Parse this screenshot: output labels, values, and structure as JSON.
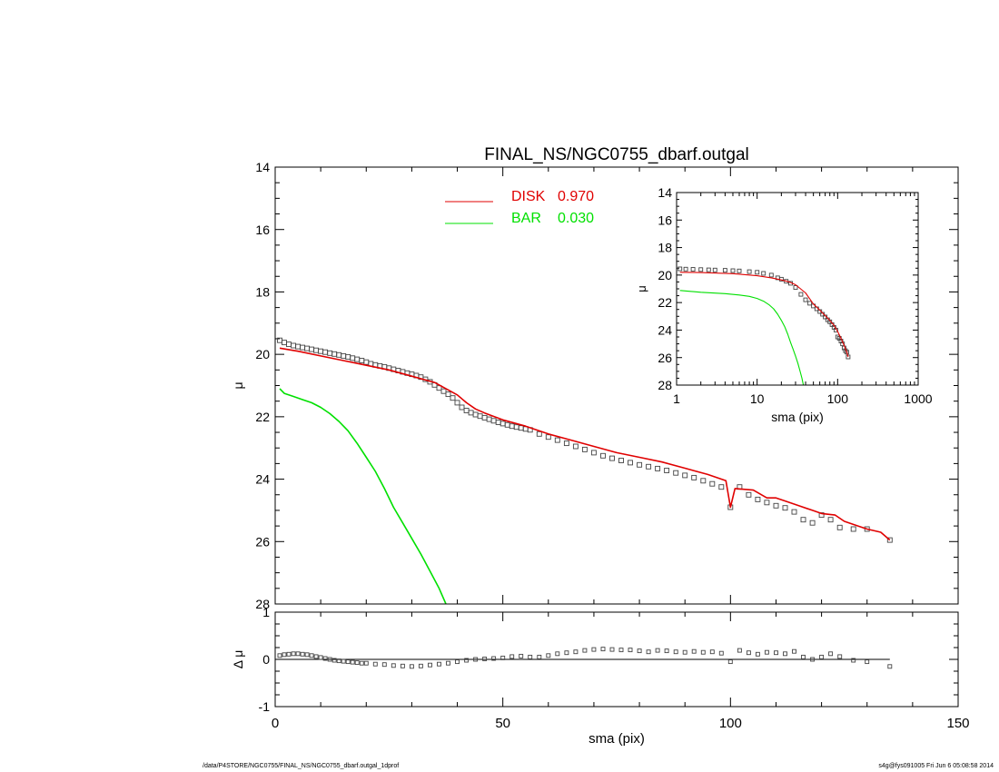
{
  "footer": {
    "left": "/data/P4STORE/NGC0755/FINAL_NS/NGC0755_dbarf.outgal_1dprof",
    "right": "s4g@fys091005  Fri Jun  6 05:08:58 2014"
  },
  "colors": {
    "disk": "#e00000",
    "bar": "#00e000",
    "data": "#444444",
    "axis": "#000000"
  },
  "chart_data": [
    {
      "id": "main",
      "type": "scatter",
      "title": "FINAL_NS/NGC0755_dbarf.outgal",
      "xlabel": "",
      "ylabel": "μ",
      "xlim": [
        0,
        150
      ],
      "ylim": [
        28,
        14
      ],
      "yticks": [
        "14",
        "16",
        "18",
        "20",
        "22",
        "24",
        "26",
        "28"
      ],
      "ytick_values": [
        14,
        16,
        18,
        20,
        22,
        24,
        26,
        28
      ],
      "legend": {
        "placement": "top-center",
        "entries": [
          {
            "name": "DISK",
            "value": "0.970",
            "color": "#e00000"
          },
          {
            "name": "BAR",
            "value": "0.030",
            "color": "#00e000"
          }
        ]
      },
      "series": [
        {
          "role": "data",
          "marker": "square",
          "x": [
            1,
            2,
            3,
            4,
            5,
            6,
            7,
            8,
            9,
            10,
            11,
            12,
            13,
            14,
            15,
            16,
            17,
            18,
            19,
            20,
            21,
            22,
            23,
            24,
            25,
            26,
            27,
            28,
            29,
            30,
            31,
            32,
            33,
            34,
            35,
            36,
            37,
            38,
            39,
            40,
            41,
            42,
            43,
            44,
            45,
            46,
            47,
            48,
            49,
            50,
            51,
            52,
            53,
            54,
            55,
            56,
            58,
            60,
            62,
            64,
            66,
            68,
            70,
            72,
            74,
            76,
            78,
            80,
            82,
            84,
            86,
            88,
            90,
            92,
            94,
            96,
            98,
            100,
            102,
            104,
            106,
            108,
            110,
            112,
            114,
            116,
            118,
            120,
            122,
            124,
            127,
            130,
            135
          ],
          "y": [
            19.55,
            19.62,
            19.68,
            19.72,
            19.75,
            19.78,
            19.81,
            19.84,
            19.87,
            19.9,
            19.93,
            19.96,
            19.99,
            20.02,
            20.05,
            20.08,
            20.12,
            20.16,
            20.2,
            20.25,
            20.3,
            20.34,
            20.37,
            20.4,
            20.44,
            20.48,
            20.52,
            20.56,
            20.6,
            20.64,
            20.68,
            20.73,
            20.8,
            20.88,
            20.98,
            21.08,
            21.18,
            21.28,
            21.4,
            21.55,
            21.7,
            21.8,
            21.87,
            21.93,
            21.98,
            22.03,
            22.08,
            22.13,
            22.18,
            22.22,
            22.26,
            22.3,
            22.33,
            22.36,
            22.39,
            22.42,
            22.55,
            22.65,
            22.75,
            22.85,
            22.95,
            23.05,
            23.15,
            23.25,
            23.33,
            23.4,
            23.47,
            23.54,
            23.6,
            23.66,
            23.72,
            23.8,
            23.88,
            23.95,
            24.05,
            24.15,
            24.25,
            24.9,
            24.25,
            24.5,
            24.65,
            24.75,
            24.85,
            24.92,
            25.05,
            25.3,
            25.4,
            25.15,
            25.3,
            25.55,
            25.6,
            25.6,
            25.95
          ]
        },
        {
          "name": "DISK",
          "role": "model",
          "color": "#e00000",
          "x": [
            1,
            5,
            10,
            15,
            20,
            25,
            30,
            35,
            40,
            42,
            44,
            46,
            50,
            55,
            60,
            65,
            70,
            75,
            80,
            85,
            90,
            95,
            99,
            100,
            101,
            105,
            108,
            110,
            112,
            115,
            118,
            120,
            123,
            125,
            128,
            130,
            133,
            135
          ],
          "y": [
            19.8,
            19.9,
            20.05,
            20.2,
            20.35,
            20.5,
            20.7,
            20.9,
            21.3,
            21.55,
            21.75,
            21.88,
            22.1,
            22.3,
            22.55,
            22.75,
            22.95,
            23.15,
            23.3,
            23.45,
            23.65,
            23.85,
            24.05,
            24.9,
            24.3,
            24.35,
            24.6,
            24.6,
            24.7,
            24.85,
            25.0,
            25.1,
            25.15,
            25.35,
            25.5,
            25.6,
            25.7,
            25.95
          ]
        },
        {
          "name": "BAR",
          "role": "model",
          "color": "#00e000",
          "x": [
            1,
            2,
            4,
            6,
            8,
            10,
            12,
            14,
            16,
            18,
            20,
            22,
            24,
            26,
            28,
            30,
            32,
            34,
            36,
            37.5
          ],
          "y": [
            21.1,
            21.25,
            21.35,
            21.45,
            21.55,
            21.7,
            21.9,
            22.15,
            22.45,
            22.85,
            23.3,
            23.75,
            24.3,
            24.9,
            25.4,
            25.9,
            26.4,
            26.95,
            27.5,
            28.0
          ]
        }
      ]
    },
    {
      "id": "residual",
      "type": "scatter",
      "xlabel": "sma (pix)",
      "ylabel": "Δ μ",
      "xlim": [
        0,
        150
      ],
      "ylim": [
        -1,
        1
      ],
      "xticks": [
        "0",
        "50",
        "100",
        "150"
      ],
      "xtick_values": [
        0,
        50,
        100,
        150
      ],
      "yticks": [
        "1",
        "0",
        "-1"
      ],
      "ytick_values": [
        1,
        0,
        -1
      ],
      "reference_line": 0,
      "series": [
        {
          "role": "data",
          "marker": "square",
          "x": [
            1,
            2,
            3,
            4,
            5,
            6,
            7,
            8,
            9,
            10,
            11,
            12,
            13,
            14,
            15,
            16,
            17,
            18,
            19,
            20,
            22,
            24,
            26,
            28,
            30,
            32,
            34,
            36,
            38,
            40,
            42,
            44,
            46,
            48,
            50,
            52,
            54,
            56,
            58,
            60,
            62,
            64,
            66,
            68,
            70,
            72,
            74,
            76,
            78,
            80,
            82,
            84,
            86,
            88,
            90,
            92,
            94,
            96,
            98,
            100,
            102,
            104,
            106,
            108,
            110,
            112,
            114,
            116,
            118,
            120,
            122,
            124,
            127,
            130,
            135
          ],
          "y": [
            0.08,
            0.1,
            0.11,
            0.12,
            0.12,
            0.11,
            0.1,
            0.08,
            0.06,
            0.04,
            0.02,
            0.0,
            -0.02,
            -0.03,
            -0.04,
            -0.05,
            -0.06,
            -0.07,
            -0.08,
            -0.08,
            -0.1,
            -0.11,
            -0.13,
            -0.14,
            -0.15,
            -0.14,
            -0.12,
            -0.1,
            -0.08,
            -0.05,
            -0.02,
            0.0,
            0.01,
            0.02,
            0.03,
            0.06,
            0.07,
            0.05,
            0.05,
            0.08,
            0.12,
            0.14,
            0.16,
            0.19,
            0.21,
            0.22,
            0.21,
            0.2,
            0.2,
            0.18,
            0.16,
            0.19,
            0.18,
            0.16,
            0.15,
            0.17,
            0.15,
            0.16,
            0.13,
            -0.05,
            0.19,
            0.14,
            0.11,
            0.15,
            0.14,
            0.12,
            0.17,
            0.05,
            0.0,
            0.05,
            0.12,
            0.06,
            -0.02,
            -0.05,
            -0.15
          ]
        }
      ]
    },
    {
      "id": "inset",
      "type": "scatter",
      "scale": {
        "x": "log"
      },
      "xlabel": "sma (pix)",
      "ylabel": "μ",
      "xlim": [
        1,
        1000
      ],
      "ylim": [
        28,
        14
      ],
      "xticks": [
        "1",
        "10",
        "100",
        "1000"
      ],
      "xtick_values": [
        1,
        10,
        100,
        1000
      ],
      "yticks": [
        "14",
        "16",
        "18",
        "20",
        "22",
        "24",
        "26",
        "28"
      ],
      "ytick_values": [
        14,
        16,
        18,
        20,
        22,
        24,
        26,
        28
      ],
      "series": [
        {
          "role": "data",
          "marker": "square",
          "x": [
            1.1,
            1.3,
            1.6,
            2,
            2.5,
            3,
            4,
            5,
            6,
            8,
            10,
            12,
            15,
            18,
            20,
            23,
            26,
            30,
            35,
            40,
            45,
            50,
            55,
            60,
            65,
            70,
            75,
            80,
            85,
            90,
            95,
            100,
            105,
            110,
            115,
            120,
            125,
            130,
            135
          ],
          "y": [
            19.55,
            19.57,
            19.58,
            19.6,
            19.62,
            19.63,
            19.65,
            19.68,
            19.7,
            19.75,
            19.8,
            19.88,
            20.0,
            20.2,
            20.3,
            20.45,
            20.6,
            20.9,
            21.4,
            21.8,
            22.05,
            22.25,
            22.45,
            22.65,
            22.85,
            23.05,
            23.25,
            23.4,
            23.6,
            23.8,
            24.0,
            24.5,
            24.6,
            24.8,
            25.0,
            25.3,
            25.5,
            25.6,
            25.95
          ]
        },
        {
          "name": "DISK",
          "role": "model",
          "color": "#e00000",
          "x": [
            1.1,
            2,
            5,
            10,
            15,
            20,
            25,
            30,
            40,
            50,
            60,
            70,
            80,
            90,
            100,
            110,
            120,
            130,
            135
          ],
          "y": [
            19.8,
            19.82,
            19.9,
            20.05,
            20.2,
            20.35,
            20.5,
            20.7,
            21.3,
            22.1,
            22.55,
            22.95,
            23.3,
            23.65,
            24.1,
            24.6,
            25.1,
            25.6,
            25.95
          ]
        },
        {
          "name": "BAR",
          "role": "model",
          "color": "#00e000",
          "x": [
            1.1,
            2,
            4,
            6,
            8,
            10,
            12,
            14,
            16,
            18,
            20,
            22,
            24,
            26,
            28,
            30,
            32,
            34,
            36,
            37.5
          ],
          "y": [
            21.12,
            21.25,
            21.35,
            21.45,
            21.55,
            21.7,
            21.9,
            22.15,
            22.45,
            22.85,
            23.3,
            23.75,
            24.3,
            24.9,
            25.4,
            25.9,
            26.4,
            26.95,
            27.5,
            28.0
          ]
        }
      ]
    }
  ]
}
